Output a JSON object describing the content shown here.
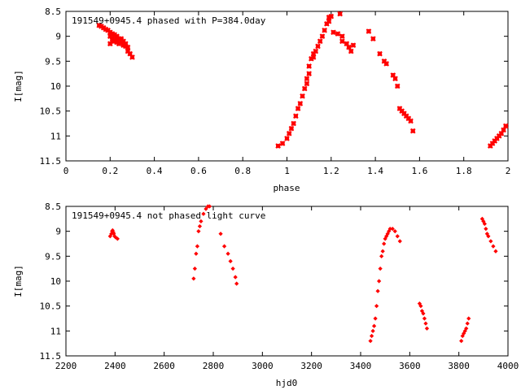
{
  "chart_data": [
    {
      "type": "scatter",
      "title": "191549+0945.4 phased with P=384.0day",
      "xlabel": "phase",
      "ylabel": "I[mag]",
      "xlim": [
        0,
        2
      ],
      "ylim": [
        11.5,
        8.5
      ],
      "y_inverted": true,
      "grid": false,
      "x_ticks": [
        0,
        0.2,
        0.4,
        0.6,
        0.8,
        1,
        1.2,
        1.4,
        1.6,
        1.8,
        2
      ],
      "x_tick_labels": [
        "0",
        "0.2",
        "0.4",
        "0.6",
        "0.8",
        "1",
        "1.2",
        "1.4",
        "1.6",
        "1.8",
        "2"
      ],
      "y_ticks": [
        8.5,
        9,
        9.5,
        10,
        10.5,
        11,
        11.5
      ],
      "y_tick_labels": [
        "8.5",
        "9",
        "9.5",
        "10",
        "10.5",
        "11",
        "11.5"
      ],
      "marker": "cross",
      "color": "#ff0000",
      "series": [
        {
          "x": [
            0.15,
            0.16,
            0.17,
            0.18,
            0.19,
            0.2,
            0.2,
            0.21,
            0.21,
            0.22,
            0.22,
            0.23,
            0.23,
            0.24,
            0.24,
            0.25,
            0.25,
            0.26,
            0.26,
            0.27,
            0.27,
            0.28,
            0.29,
            0.3,
            0.2,
            0.21,
            0.23,
            0.25,
            0.28,
            0.96,
            0.98,
            1.0,
            1.01,
            1.02,
            1.03,
            1.04,
            1.05,
            1.06,
            1.07,
            1.08,
            1.09,
            1.09,
            1.1,
            1.1,
            1.11,
            1.12,
            1.12,
            1.13,
            1.14,
            1.15,
            1.16,
            1.17,
            1.18,
            1.19,
            1.19,
            1.2,
            1.21,
            1.23,
            1.24,
            1.25,
            1.25,
            1.27,
            1.28,
            1.29,
            1.3,
            1.37,
            1.39,
            1.42,
            1.44,
            1.45,
            1.48,
            1.49,
            1.5,
            1.51,
            1.52,
            1.53,
            1.54,
            1.55,
            1.56,
            1.57,
            1.92,
            1.93,
            1.94,
            1.95,
            1.96,
            1.97,
            1.98,
            1.99
          ],
          "y": [
            8.78,
            8.8,
            8.83,
            8.86,
            8.88,
            8.92,
            9.0,
            8.95,
            9.05,
            8.97,
            9.1,
            9.02,
            9.12,
            9.05,
            9.15,
            9.08,
            9.12,
            9.1,
            9.18,
            9.15,
            9.2,
            9.3,
            9.35,
            9.42,
            9.15,
            9.08,
            9.0,
            9.05,
            9.22,
            11.2,
            11.15,
            11.05,
            10.95,
            10.85,
            10.75,
            10.6,
            10.45,
            10.35,
            10.2,
            10.05,
            9.95,
            9.85,
            9.75,
            9.6,
            9.45,
            9.42,
            9.35,
            9.3,
            9.2,
            9.1,
            9.0,
            8.88,
            8.75,
            8.62,
            8.7,
            8.6,
            8.92,
            8.95,
            8.55,
            9.0,
            9.1,
            9.15,
            9.22,
            9.3,
            9.18,
            8.9,
            9.05,
            9.35,
            9.5,
            9.55,
            9.78,
            9.85,
            10.0,
            10.45,
            10.5,
            10.55,
            10.6,
            10.65,
            10.7,
            10.9,
            11.2,
            11.15,
            11.1,
            11.05,
            11.0,
            10.95,
            10.88,
            10.8
          ]
        }
      ]
    },
    {
      "type": "scatter",
      "title": "191549+0945.4 not phased light curve",
      "xlabel": "hjd0",
      "ylabel": "I[mag]",
      "xlim": [
        2200,
        4000
      ],
      "ylim": [
        11.5,
        8.5
      ],
      "y_inverted": true,
      "grid": false,
      "x_ticks": [
        2200,
        2400,
        2600,
        2800,
        3000,
        3200,
        3400,
        3600,
        3800,
        4000
      ],
      "x_tick_labels": [
        "2200",
        "2400",
        "2600",
        "2800",
        "3000",
        "3200",
        "3400",
        "3600",
        "3800",
        "4000"
      ],
      "y_ticks": [
        8.5,
        9,
        9.5,
        10,
        10.5,
        11,
        11.5
      ],
      "y_tick_labels": [
        "8.5",
        "9",
        "9.5",
        "10",
        "10.5",
        "11",
        "11.5"
      ],
      "marker": "diamond",
      "color": "#ff0000",
      "series": [
        {
          "x": [
            2380,
            2385,
            2388,
            2390,
            2393,
            2395,
            2398,
            2402,
            2410,
            2720,
            2725,
            2730,
            2735,
            2740,
            2745,
            2750,
            2760,
            2770,
            2778,
            2785,
            2830,
            2845,
            2860,
            2870,
            2880,
            2890,
            2895,
            3440,
            3445,
            3450,
            3455,
            3460,
            3465,
            3470,
            3475,
            3480,
            3485,
            3490,
            3495,
            3500,
            3505,
            3510,
            3515,
            3520,
            3530,
            3540,
            3550,
            3560,
            3640,
            3645,
            3650,
            3655,
            3660,
            3665,
            3670,
            3810,
            3815,
            3820,
            3825,
            3830,
            3835,
            3840,
            3895,
            3900,
            3905,
            3910,
            3915,
            3920,
            3930,
            3940,
            3950
          ],
          "y": [
            9.1,
            9.05,
            9.0,
            8.98,
            9.02,
            9.05,
            9.1,
            9.12,
            9.15,
            9.95,
            9.75,
            9.45,
            9.3,
            9.0,
            8.9,
            8.8,
            8.65,
            8.55,
            8.5,
            8.5,
            9.05,
            9.3,
            9.45,
            9.6,
            9.75,
            9.92,
            10.05,
            11.2,
            11.1,
            11.0,
            10.9,
            10.75,
            10.5,
            10.2,
            10.0,
            9.75,
            9.5,
            9.4,
            9.25,
            9.15,
            9.1,
            9.05,
            9.0,
            8.95,
            8.95,
            9.0,
            9.1,
            9.2,
            10.45,
            10.5,
            10.6,
            10.65,
            10.75,
            10.85,
            10.95,
            11.2,
            11.1,
            11.05,
            11.0,
            10.95,
            10.85,
            10.75,
            8.75,
            8.8,
            8.85,
            8.95,
            9.05,
            9.1,
            9.2,
            9.3,
            9.4
          ]
        }
      ]
    }
  ]
}
